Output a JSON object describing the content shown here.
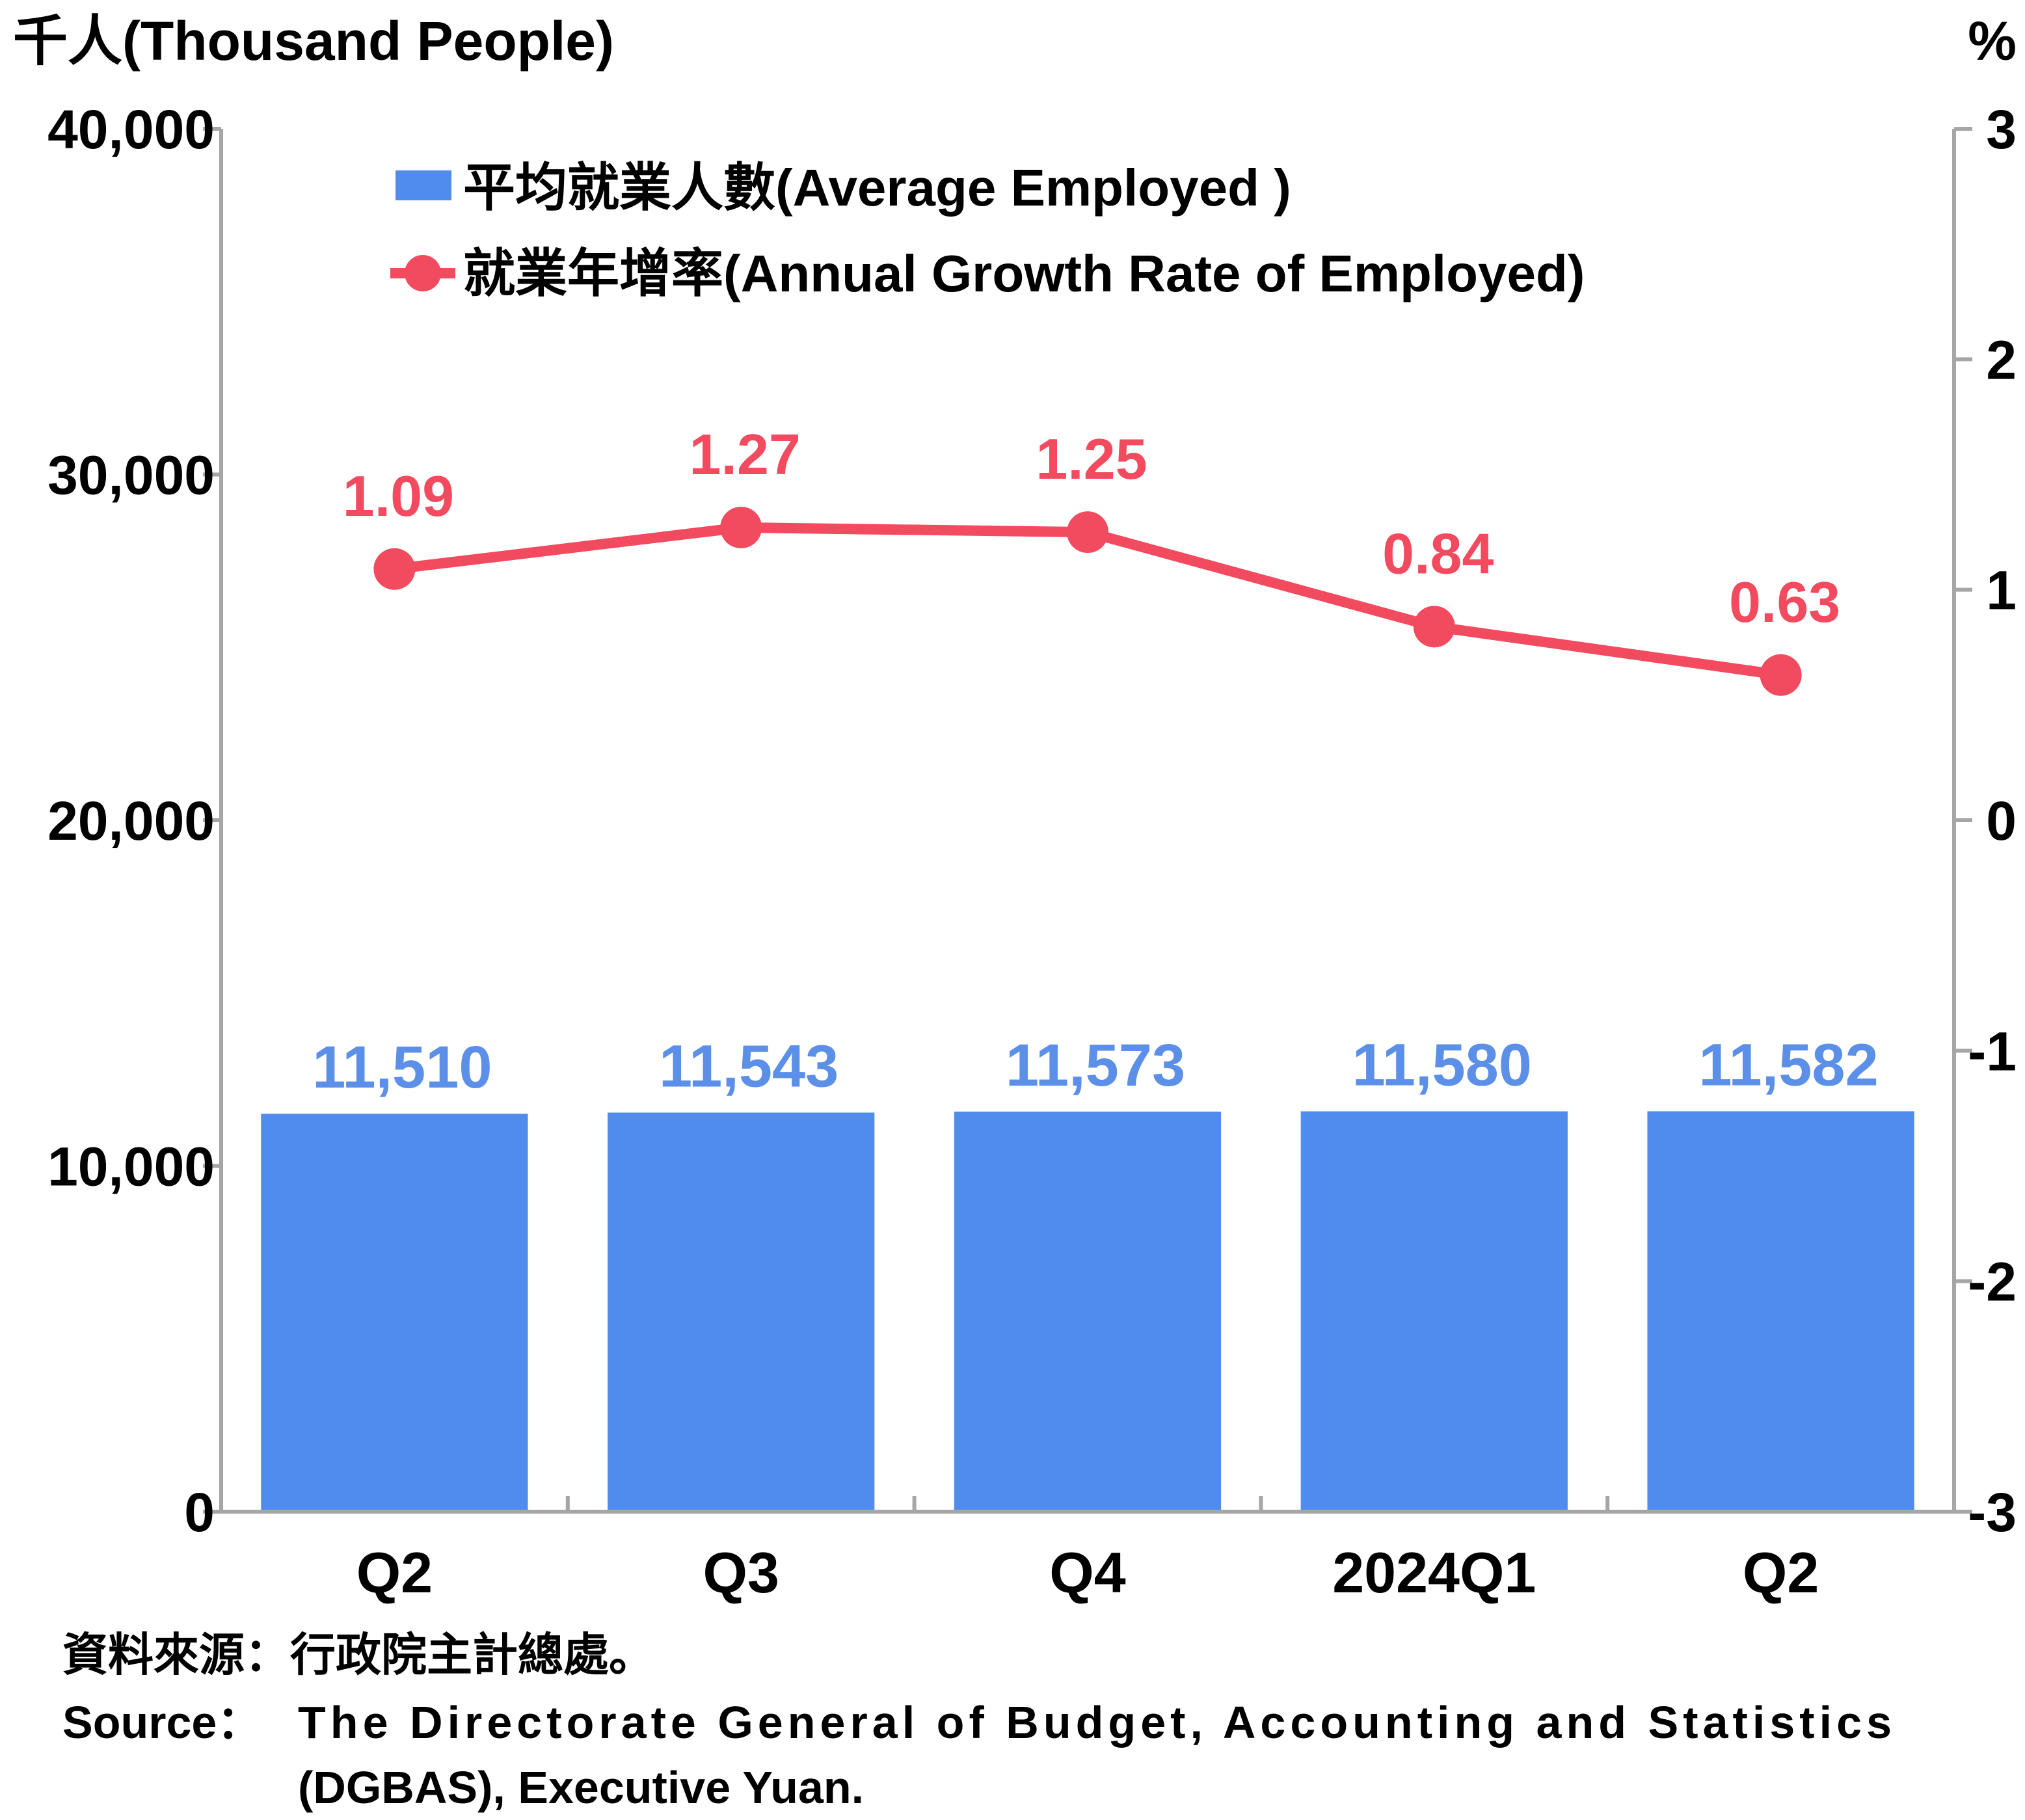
{
  "chart_data": {
    "type": "bar",
    "categories": [
      "Q2",
      "Q3",
      "Q4",
      "2024Q1",
      "Q2"
    ],
    "series": [
      {
        "name": "平均就業人數(Average Employed )",
        "type": "bar",
        "axis": "left",
        "values": [
          11510,
          11543,
          11573,
          11580,
          11582
        ],
        "labels": [
          "11,510",
          "11,543",
          "11,573",
          "11,580",
          "11,582"
        ],
        "color": "#508cec"
      },
      {
        "name": "就業年增率(Annual Growth Rate of Employed)",
        "type": "line",
        "axis": "right",
        "values": [
          1.09,
          1.27,
          1.25,
          0.84,
          0.63
        ],
        "labels": [
          "1.09",
          "1.27",
          "1.25",
          "0.84",
          "0.63"
        ],
        "color": "#f24a5e"
      }
    ],
    "y_left": {
      "label": "千人(Thousand People)",
      "ylim": [
        0,
        40000
      ],
      "ticks": [
        0,
        10000,
        20000,
        30000,
        40000
      ],
      "tick_labels": [
        "0",
        "10,000",
        "20,000",
        "30,000",
        "40,000"
      ]
    },
    "y_right": {
      "label": "%",
      "ylim": [
        -3,
        3
      ],
      "ticks": [
        -3,
        -2,
        -1,
        0,
        1,
        2,
        3
      ],
      "tick_labels": [
        "-3",
        "-2",
        "-1",
        "0",
        "1",
        "2",
        "3"
      ]
    },
    "grid": false,
    "legend": "top-center"
  },
  "source": {
    "zh": "資料來源：行政院主計總處。",
    "en_label": "Source：",
    "en_line1": "The Directorate General of Budget, Accounting and Statistics",
    "en_line2": "(DGBAS), Executive Yuan."
  }
}
